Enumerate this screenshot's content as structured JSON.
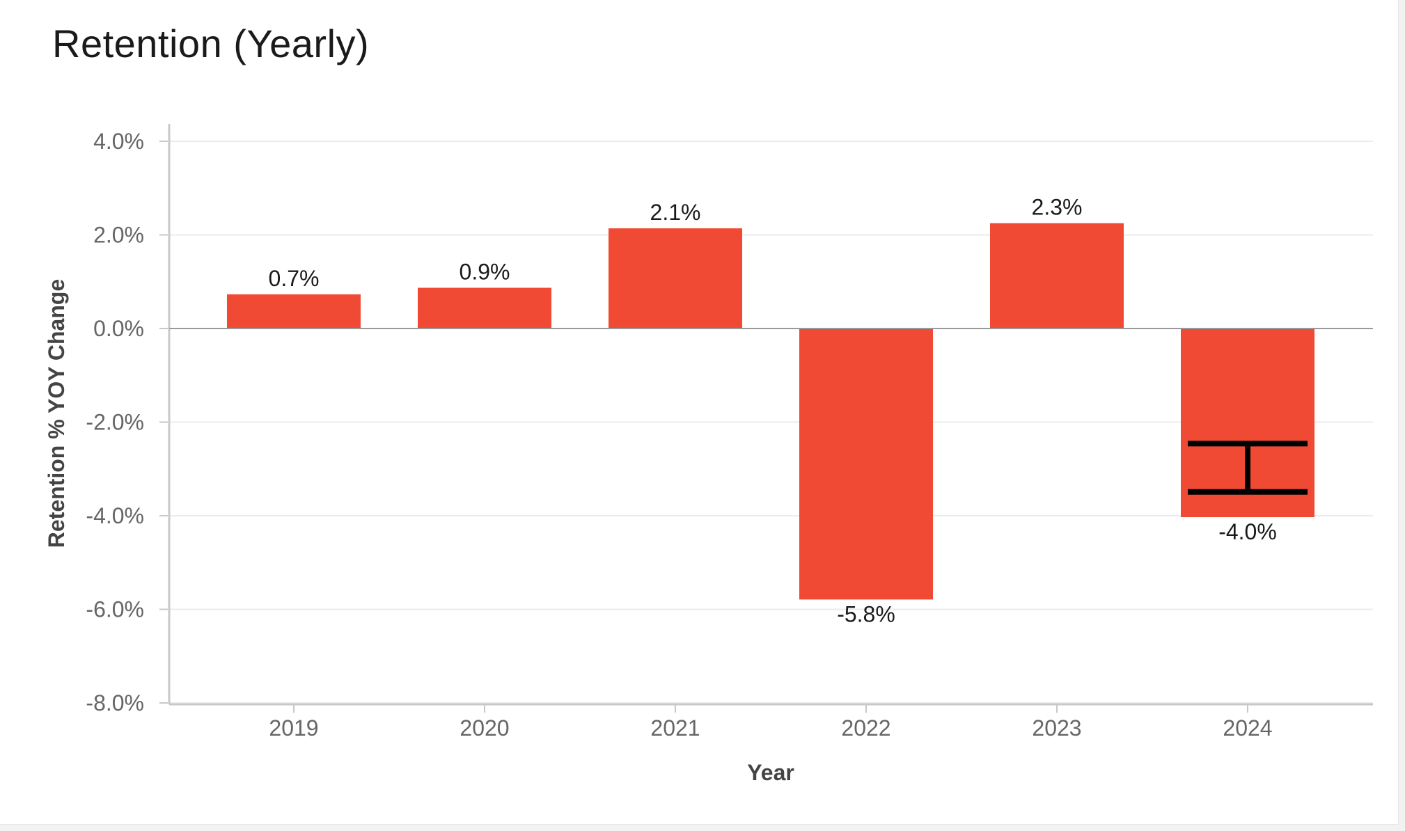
{
  "chart_data": {
    "type": "bar",
    "title": "Retention (Yearly)",
    "xlabel": "Year",
    "ylabel": "Retention % YOY Change",
    "categories": [
      "2019",
      "2020",
      "2021",
      "2022",
      "2023",
      "2024"
    ],
    "values": [
      0.73,
      0.87,
      2.14,
      -5.79,
      2.25,
      -4.03
    ],
    "data_labels": [
      "0.7%",
      "0.9%",
      "2.1%",
      "-5.8%",
      "2.3%",
      "-4.0%"
    ],
    "yticks": [
      4,
      2,
      0,
      -2,
      -4,
      -6,
      -8
    ],
    "ytick_labels": [
      "4.0%",
      "2.0%",
      "0.0%",
      "-2.0%",
      "-4.0%",
      "-6.0%",
      "-8.0%"
    ],
    "ylim": [
      -8,
      4
    ],
    "error_bars": [
      {
        "category": "2024",
        "low": -3.49,
        "high": -2.46
      }
    ],
    "grid": true,
    "legend": "none",
    "colors": {
      "bar": "#f04a35",
      "error_bar": "#000000",
      "grid": "#ebebeb",
      "zero_line": "#999999",
      "axis": "#c8c8c8"
    }
  }
}
